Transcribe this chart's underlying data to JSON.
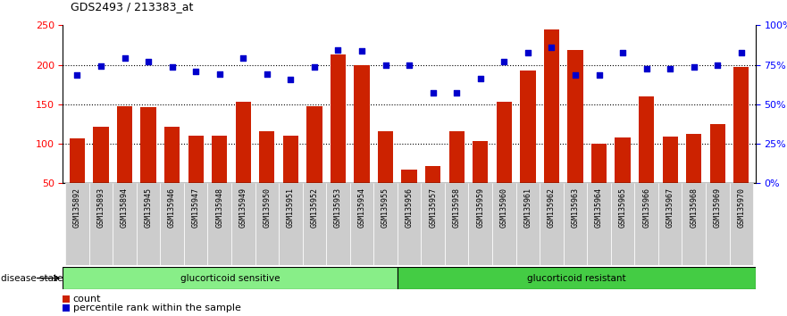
{
  "title": "GDS2493 / 213383_at",
  "samples": [
    "GSM135892",
    "GSM135893",
    "GSM135894",
    "GSM135945",
    "GSM135946",
    "GSM135947",
    "GSM135948",
    "GSM135949",
    "GSM135950",
    "GSM135951",
    "GSM135952",
    "GSM135953",
    "GSM135954",
    "GSM135955",
    "GSM135956",
    "GSM135957",
    "GSM135958",
    "GSM135959",
    "GSM135960",
    "GSM135961",
    "GSM135962",
    "GSM135963",
    "GSM135964",
    "GSM135965",
    "GSM135966",
    "GSM135967",
    "GSM135968",
    "GSM135969",
    "GSM135970"
  ],
  "bar_values": [
    107,
    122,
    147,
    146,
    121,
    110,
    110,
    153,
    116,
    110,
    148,
    213,
    200,
    116,
    67,
    72,
    116,
    104,
    153,
    193,
    245,
    219,
    100,
    108,
    160,
    109,
    112,
    125,
    197
  ],
  "percentile_values": [
    68.5,
    74,
    79.5,
    77,
    73.5,
    71,
    69,
    79.5,
    69,
    65.5,
    73.5,
    84.5,
    84,
    75,
    74.5,
    57,
    57.5,
    66.5,
    77,
    82.5,
    86,
    68.5,
    68.5,
    82.5,
    72.5,
    72.5,
    73.5,
    75,
    82.5
  ],
  "sensitive_count": 14,
  "ylim_left": [
    50,
    250
  ],
  "ylim_right": [
    0,
    100
  ],
  "yticks_left": [
    50,
    100,
    150,
    200,
    250
  ],
  "yticks_right": [
    0,
    25,
    50,
    75,
    100
  ],
  "ytick_labels_right": [
    "0%",
    "25%",
    "50%",
    "75%",
    "100%"
  ],
  "bar_color": "#cc2200",
  "dot_color": "#0000cc",
  "sensitive_color": "#88ee88",
  "resistant_color": "#44cc44",
  "tick_bg_color": "#cccccc",
  "legend_items": [
    "count",
    "percentile rank within the sample"
  ],
  "hgrid_lines": [
    100,
    150,
    200
  ]
}
